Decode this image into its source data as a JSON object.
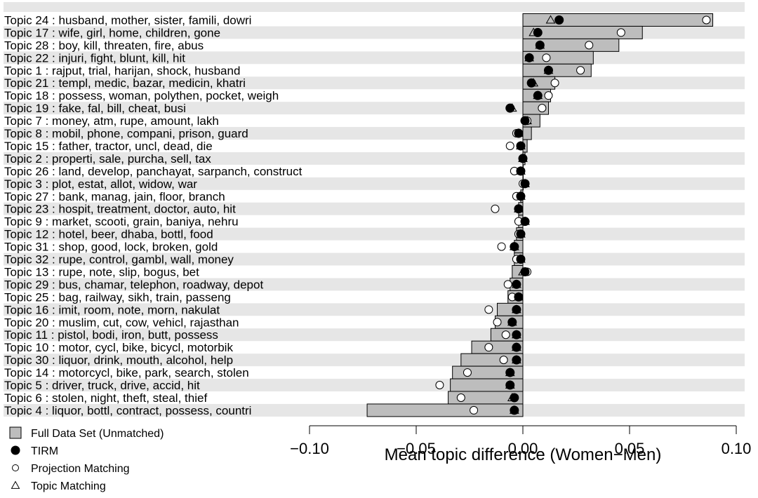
{
  "chart_data": {
    "type": "dot-bar",
    "xlabel": "Mean topic difference (Women−Men)",
    "xlim": [
      -0.1,
      0.1
    ],
    "xticks": [
      -0.1,
      -0.05,
      0.0,
      0.05,
      0.1
    ],
    "xtick_labels": [
      "−0.10",
      "−0.05",
      "0.00",
      "0.05",
      "0.10"
    ],
    "legend": [
      {
        "key": "full",
        "label": "Full Data Set (Unmatched)",
        "marker": "grey-bar"
      },
      {
        "key": "tirm",
        "label": "TIRM",
        "marker": "filled-circle"
      },
      {
        "key": "proj",
        "label": "Projection Matching",
        "marker": "open-circle"
      },
      {
        "key": "topic",
        "label": "Topic Matching",
        "marker": "open-triangle"
      }
    ],
    "topics": [
      {
        "label": "Topic 24 :  husband, mother, sister, famili, dowri",
        "full": 0.089,
        "tirm": 0.017,
        "proj": 0.086,
        "topic": 0.013
      },
      {
        "label": "Topic 17 :  wife, girl, home, children, gone",
        "full": 0.056,
        "tirm": 0.007,
        "proj": 0.046,
        "topic": 0.005
      },
      {
        "label": "Topic 28 :  boy, kill, threaten, fire, abus",
        "full": 0.045,
        "tirm": 0.008,
        "proj": 0.031,
        "topic": 0.008
      },
      {
        "label": "Topic 22 :  injuri, fight, blunt, kill, hit",
        "full": 0.033,
        "tirm": 0.003,
        "proj": 0.011,
        "topic": 0.003
      },
      {
        "label": "Topic 1 :  rajput, trial, harijan, shock, husband",
        "full": 0.032,
        "tirm": 0.012,
        "proj": 0.027,
        "topic": 0.012
      },
      {
        "label": "Topic 21 :  templ, medic, bazar, medicin, khatri",
        "full": 0.015,
        "tirm": 0.004,
        "proj": 0.015,
        "topic": 0.005
      },
      {
        "label": "Topic 18 :  possess, woman, polythen, pocket, weigh",
        "full": 0.013,
        "tirm": 0.007,
        "proj": 0.012,
        "topic": 0.007
      },
      {
        "label": "Topic 19 :  fake, fal, bill, cheat, busi",
        "full": 0.012,
        "tirm": -0.006,
        "proj": 0.009,
        "topic": -0.005
      },
      {
        "label": "Topic 7 :  money, atm, rupe, amount, lakh",
        "full": 0.008,
        "tirm": 0.001,
        "proj": 0.002,
        "topic": 0.002
      },
      {
        "label": "Topic 8 :  mobil, phone, compani, prison, guard",
        "full": 0.004,
        "tirm": -0.002,
        "proj": -0.003,
        "topic": -0.002
      },
      {
        "label": "Topic 15 :  father, tractor, uncl, dead, die",
        "full": 0.002,
        "tirm": -0.001,
        "proj": -0.006,
        "topic": -0.001
      },
      {
        "label": "Topic 2 :  properti, sale, purcha, sell, tax",
        "full": 0.001,
        "tirm": 0.0,
        "proj": 0.0,
        "topic": 0.0
      },
      {
        "label": "Topic 26 :  land, develop, panchayat, sarpanch, construct",
        "full": 0.0,
        "tirm": -0.001,
        "proj": -0.004,
        "topic": -0.001
      },
      {
        "label": "Topic 3 :  plot, estat, allot, widow, war",
        "full": 0.0,
        "tirm": 0.001,
        "proj": 0.0,
        "topic": 0.001
      },
      {
        "label": "Topic 27 :  bank, manag, jain, floor, branch",
        "full": -0.001,
        "tirm": -0.001,
        "proj": -0.003,
        "topic": -0.001
      },
      {
        "label": "Topic 23 :  hospit, treatment, doctor, auto, hit",
        "full": -0.002,
        "tirm": -0.002,
        "proj": -0.013,
        "topic": -0.002
      },
      {
        "label": "Topic 9 :  market, scooti, grain, baniya, nehru",
        "full": -0.002,
        "tirm": 0.001,
        "proj": -0.002,
        "topic": 0.001
      },
      {
        "label": "Topic 12 :  hotel, beer, dhaba, bottl, food",
        "full": -0.003,
        "tirm": -0.001,
        "proj": -0.002,
        "topic": -0.001
      },
      {
        "label": "Topic 31 :  shop, good, lock, broken, gold",
        "full": -0.004,
        "tirm": -0.004,
        "proj": -0.01,
        "topic": -0.004
      },
      {
        "label": "Topic 32 :  rupe, control, gambl, wall, money",
        "full": -0.004,
        "tirm": -0.001,
        "proj": -0.003,
        "topic": -0.001
      },
      {
        "label": "Topic 13 :  rupe, note, slip, bogus, bet",
        "full": -0.005,
        "tirm": 0.001,
        "proj": 0.002,
        "topic": 0.0
      },
      {
        "label": "Topic 29 :  bus, chamar, telephon, roadway, depot",
        "full": -0.006,
        "tirm": -0.003,
        "proj": -0.007,
        "topic": -0.003
      },
      {
        "label": "Topic 25 :  bag, railway, sikh, train, passeng",
        "full": -0.007,
        "tirm": -0.002,
        "proj": -0.005,
        "topic": -0.002
      },
      {
        "label": "Topic 16 :  imit, room, note, morn, nakulat",
        "full": -0.012,
        "tirm": -0.003,
        "proj": -0.016,
        "topic": -0.003
      },
      {
        "label": "Topic 20 :  muslim, cut, cow, vehicl, rajasthan",
        "full": -0.013,
        "tirm": -0.005,
        "proj": -0.012,
        "topic": -0.005
      },
      {
        "label": "Topic 11 :  pistol, bodi, iron, butt, possess",
        "full": -0.015,
        "tirm": -0.003,
        "proj": -0.008,
        "topic": -0.003
      },
      {
        "label": "Topic 10 :  motor, cycl, bike, bicycl, motorbik",
        "full": -0.024,
        "tirm": -0.003,
        "proj": -0.016,
        "topic": -0.003
      },
      {
        "label": "Topic 30 :  liquor, drink, mouth, alcohol, help",
        "full": -0.029,
        "tirm": -0.003,
        "proj": -0.009,
        "topic": -0.003
      },
      {
        "label": "Topic 14 :  motorcycl, bike, park, search, stolen",
        "full": -0.033,
        "tirm": -0.006,
        "proj": -0.026,
        "topic": -0.006
      },
      {
        "label": "Topic 5 :  driver, truck, drive, accid, hit",
        "full": -0.034,
        "tirm": -0.006,
        "proj": -0.039,
        "topic": -0.006
      },
      {
        "label": "Topic 6 :  stolen, night, theft, steal, thief",
        "full": -0.035,
        "tirm": -0.004,
        "proj": -0.029,
        "topic": -0.005
      },
      {
        "label": "Topic 4 :  liquor, bottl, contract, possess, countri",
        "full": -0.073,
        "tirm": -0.004,
        "proj": -0.023,
        "topic": -0.004
      }
    ]
  }
}
